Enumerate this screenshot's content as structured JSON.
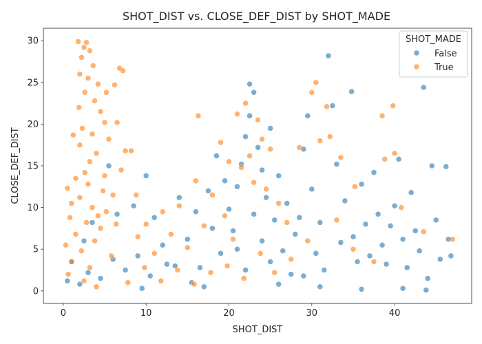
{
  "chart_data": {
    "type": "scatter",
    "title": "SHOT_DIST vs. CLOSE_DEF_DIST by SHOT_MADE",
    "xlabel": "SHOT_DIST",
    "ylabel": "CLOSE_DEF_DIST",
    "xlim": [
      -2.4,
      49.3
    ],
    "ylim": [
      -1.5,
      31.5
    ],
    "xticks": [
      0,
      10,
      20,
      30,
      40
    ],
    "yticks": [
      0,
      5,
      10,
      15,
      20,
      25,
      30
    ],
    "grid": false,
    "legend": {
      "title": "SHOT_MADE",
      "placement": "top-right"
    },
    "series": [
      {
        "name": "False",
        "color": "#1f77b4",
        "points": [
          [
            0.5,
            1.2
          ],
          [
            1.0,
            3.5
          ],
          [
            2.0,
            0.8
          ],
          [
            3.0,
            2.2
          ],
          [
            4.5,
            1.5
          ],
          [
            6.0,
            3.8
          ],
          [
            7.5,
            2.5
          ],
          [
            9.0,
            4.2
          ],
          [
            10.5,
            1.8
          ],
          [
            12.0,
            5.5
          ],
          [
            13.5,
            3.0
          ],
          [
            15.0,
            6.2
          ],
          [
            16.5,
            2.8
          ],
          [
            18.0,
            7.5
          ],
          [
            19.0,
            4.5
          ],
          [
            20.0,
            9.8
          ],
          [
            21.0,
            12.5
          ],
          [
            21.5,
            15.2
          ],
          [
            22.0,
            18.5
          ],
          [
            22.5,
            21.0
          ],
          [
            23.0,
            23.8
          ],
          [
            22.5,
            24.8
          ],
          [
            23.5,
            17.2
          ],
          [
            24.0,
            14.5
          ],
          [
            24.5,
            11.2
          ],
          [
            25.0,
            19.5
          ],
          [
            25.5,
            8.5
          ],
          [
            26.0,
            13.8
          ],
          [
            27.0,
            10.5
          ],
          [
            28.0,
            6.8
          ],
          [
            29.0,
            17.0
          ],
          [
            29.5,
            21.0
          ],
          [
            30.0,
            12.2
          ],
          [
            31.0,
            8.2
          ],
          [
            32.0,
            28.2
          ],
          [
            32.5,
            22.2
          ],
          [
            33.0,
            15.2
          ],
          [
            34.0,
            10.8
          ],
          [
            34.8,
            23.9
          ],
          [
            35.0,
            6.5
          ],
          [
            36.0,
            12.8
          ],
          [
            37.0,
            4.2
          ],
          [
            37.5,
            14.2
          ],
          [
            38.0,
            9.2
          ],
          [
            39.0,
            3.2
          ],
          [
            40.0,
            10.2
          ],
          [
            40.5,
            15.8
          ],
          [
            41.0,
            6.2
          ],
          [
            41.5,
            2.8
          ],
          [
            42.0,
            11.8
          ],
          [
            42.5,
            7.2
          ],
          [
            43.0,
            4.8
          ],
          [
            43.5,
            24.4
          ],
          [
            44.0,
            1.5
          ],
          [
            44.5,
            15.0
          ],
          [
            45.0,
            8.5
          ],
          [
            45.5,
            3.8
          ],
          [
            46.2,
            14.9
          ],
          [
            46.5,
            6.2
          ],
          [
            46.8,
            4.2
          ],
          [
            19.5,
            13.2
          ],
          [
            20.5,
            7.2
          ],
          [
            21.0,
            5.0
          ],
          [
            22.0,
            2.5
          ],
          [
            23.0,
            9.2
          ],
          [
            24.0,
            6.0
          ],
          [
            25.0,
            3.5
          ],
          [
            26.5,
            4.8
          ],
          [
            27.5,
            2.0
          ],
          [
            28.5,
            8.8
          ],
          [
            30.5,
            4.5
          ],
          [
            31.5,
            2.5
          ],
          [
            33.5,
            5.8
          ],
          [
            35.5,
            3.5
          ],
          [
            36.5,
            8.0
          ],
          [
            38.5,
            5.5
          ],
          [
            39.5,
            7.8
          ],
          [
            10.0,
            13.8
          ],
          [
            8.5,
            10.2
          ],
          [
            5.5,
            15.0
          ],
          [
            6.5,
            9.2
          ],
          [
            3.5,
            8.2
          ],
          [
            2.5,
            6.0
          ],
          [
            11.0,
            8.8
          ],
          [
            14.0,
            11.2
          ],
          [
            16.0,
            9.5
          ],
          [
            17.5,
            12.0
          ],
          [
            18.5,
            16.2
          ],
          [
            12.5,
            3.2
          ],
          [
            15.5,
            1.0
          ],
          [
            17.0,
            0.5
          ],
          [
            9.5,
            0.3
          ],
          [
            26.0,
            0.8
          ],
          [
            29.0,
            1.8
          ],
          [
            31.0,
            0.5
          ],
          [
            36.0,
            0.2
          ],
          [
            41.0,
            0.3
          ],
          [
            43.8,
            0.1
          ]
        ]
      },
      {
        "name": "True",
        "color": "#ff7f0e",
        "points": [
          [
            1.8,
            29.9
          ],
          [
            2.5,
            29.2
          ],
          [
            2.8,
            29.8
          ],
          [
            3.2,
            28.8
          ],
          [
            2.2,
            28.0
          ],
          [
            3.6,
            27.0
          ],
          [
            2.0,
            26.0
          ],
          [
            3.0,
            25.5
          ],
          [
            4.2,
            24.8
          ],
          [
            2.6,
            23.8
          ],
          [
            3.8,
            22.8
          ],
          [
            1.9,
            22.0
          ],
          [
            4.5,
            21.5
          ],
          [
            5.0,
            20.2
          ],
          [
            2.3,
            19.5
          ],
          [
            3.5,
            18.8
          ],
          [
            1.2,
            18.7
          ],
          [
            5.5,
            18.2
          ],
          [
            2.0,
            17.5
          ],
          [
            4.0,
            16.5
          ],
          [
            3.2,
            15.5
          ],
          [
            2.6,
            14.2
          ],
          [
            1.5,
            13.5
          ],
          [
            3.0,
            12.8
          ],
          [
            0.5,
            12.3
          ],
          [
            4.8,
            12.0
          ],
          [
            2.0,
            11.2
          ],
          [
            6.0,
            11.5
          ],
          [
            1.0,
            10.5
          ],
          [
            3.5,
            10.0
          ],
          [
            5.2,
            9.5
          ],
          [
            0.8,
            8.8
          ],
          [
            2.8,
            8.2
          ],
          [
            4.5,
            7.5
          ],
          [
            1.5,
            6.8
          ],
          [
            3.8,
            6.0
          ],
          [
            0.3,
            5.5
          ],
          [
            2.2,
            4.8
          ],
          [
            5.8,
            4.2
          ],
          [
            1.0,
            3.5
          ],
          [
            3.2,
            2.8
          ],
          [
            0.6,
            2.0
          ],
          [
            2.5,
            1.2
          ],
          [
            4.0,
            0.5
          ],
          [
            6.8,
            26.7
          ],
          [
            7.2,
            26.4
          ],
          [
            6.2,
            24.7
          ],
          [
            5.2,
            23.8
          ],
          [
            6.5,
            20.2
          ],
          [
            7.5,
            16.8
          ],
          [
            8.2,
            16.8
          ],
          [
            7.0,
            14.5
          ],
          [
            16.3,
            21.0
          ],
          [
            21.0,
            21.2
          ],
          [
            22.0,
            22.5
          ],
          [
            23.5,
            20.5
          ],
          [
            24.0,
            18.2
          ],
          [
            25.0,
            17.0
          ],
          [
            22.5,
            16.2
          ],
          [
            21.5,
            14.8
          ],
          [
            20.0,
            15.5
          ],
          [
            19.0,
            17.8
          ],
          [
            23.0,
            13.0
          ],
          [
            24.5,
            12.2
          ],
          [
            18.0,
            11.5
          ],
          [
            16.0,
            13.2
          ],
          [
            14.0,
            10.2
          ],
          [
            12.0,
            9.5
          ],
          [
            10.0,
            8.0
          ],
          [
            9.0,
            6.5
          ],
          [
            11.0,
            4.5
          ],
          [
            13.0,
            6.8
          ],
          [
            15.0,
            5.2
          ],
          [
            17.0,
            7.8
          ],
          [
            19.5,
            9.0
          ],
          [
            20.5,
            6.2
          ],
          [
            26.0,
            10.5
          ],
          [
            27.0,
            8.2
          ],
          [
            28.5,
            17.2
          ],
          [
            30.5,
            25.0
          ],
          [
            30.0,
            23.8
          ],
          [
            31.8,
            22.1
          ],
          [
            32.2,
            18.5
          ],
          [
            33.5,
            16.0
          ],
          [
            31.0,
            18.0
          ],
          [
            35.2,
            12.5
          ],
          [
            38.5,
            21.0
          ],
          [
            39.8,
            22.2
          ],
          [
            38.8,
            15.8
          ],
          [
            40.0,
            16.5
          ],
          [
            40.8,
            10.0
          ],
          [
            43.5,
            7.1
          ],
          [
            47.0,
            6.2
          ],
          [
            37.5,
            3.5
          ],
          [
            35.0,
            5.0
          ],
          [
            33.0,
            8.5
          ],
          [
            29.5,
            6.0
          ],
          [
            27.5,
            3.8
          ],
          [
            25.5,
            2.2
          ],
          [
            23.8,
            4.5
          ],
          [
            21.8,
            1.5
          ],
          [
            19.8,
            3.0
          ],
          [
            17.8,
            2.2
          ],
          [
            15.8,
            0.8
          ],
          [
            13.8,
            2.5
          ],
          [
            11.8,
            1.2
          ],
          [
            9.8,
            2.8
          ],
          [
            7.8,
            1.0
          ],
          [
            8.8,
            11.5
          ],
          [
            6.4,
            8.0
          ],
          [
            5.0,
            13.8
          ],
          [
            4.2,
            9.0
          ]
        ]
      }
    ]
  }
}
